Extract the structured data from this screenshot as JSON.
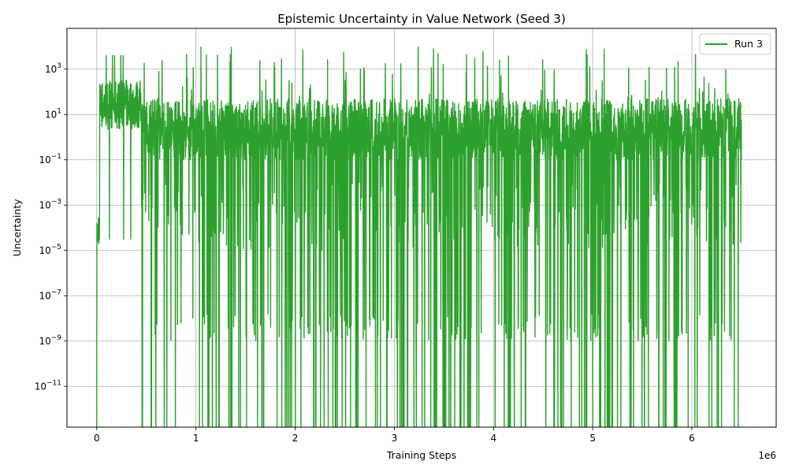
{
  "chart_data": {
    "type": "line",
    "title": "Epistemic Uncertainty in Value Network (Seed 3)",
    "xlabel": "Training Steps",
    "ylabel": "Uncertainty",
    "x_offset_label": "1e6",
    "xlim": [
      -300000,
      6850000
    ],
    "ylim_log10": [
      -12.8,
      4.8
    ],
    "yscale": "log",
    "grid": true,
    "legend_position": "top-right",
    "x_ticks": [
      {
        "value": 0,
        "label": "0"
      },
      {
        "value": 1000000,
        "label": "1"
      },
      {
        "value": 2000000,
        "label": "2"
      },
      {
        "value": 3000000,
        "label": "3"
      },
      {
        "value": 4000000,
        "label": "4"
      },
      {
        "value": 5000000,
        "label": "5"
      },
      {
        "value": 6000000,
        "label": "6"
      }
    ],
    "y_ticks": [
      {
        "exp": 3,
        "base": "10",
        "sup": "3"
      },
      {
        "exp": 1,
        "base": "10",
        "sup": "1"
      },
      {
        "exp": -1,
        "base": "10",
        "sup": "−1"
      },
      {
        "exp": -3,
        "base": "10",
        "sup": "−3"
      },
      {
        "exp": -5,
        "base": "10",
        "sup": "−5"
      },
      {
        "exp": -7,
        "base": "10",
        "sup": "−7"
      },
      {
        "exp": -9,
        "base": "10",
        "sup": "−9"
      },
      {
        "exp": -11,
        "base": "10",
        "sup": "−11"
      }
    ],
    "series": [
      {
        "name": "Run 3",
        "color": "#2ca02c",
        "x_start": 0,
        "x_end": 6500000,
        "shape_note": "dense noisy trace",
        "y_summary": {
          "typical_range": [
            0.1,
            100
          ],
          "peak": 10000,
          "min_spikes": "below 1e-12"
        }
      }
    ]
  }
}
